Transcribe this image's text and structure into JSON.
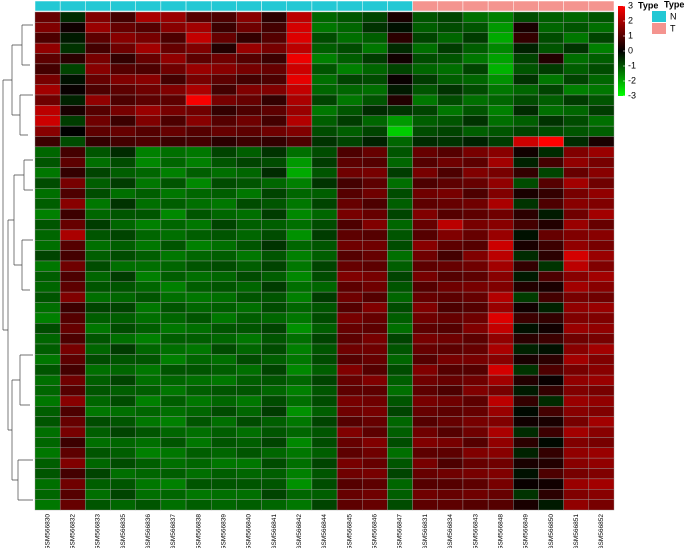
{
  "chart_data": {
    "type": "heatmap",
    "columns": [
      "GSM566830",
      "GSM566832",
      "GSM566833",
      "GSM566835",
      "GSM566836",
      "GSM566837",
      "GSM566838",
      "GSM566839",
      "GSM566840",
      "GSM566841",
      "GSM566842",
      "GSM566844",
      "GSM566845",
      "GSM566846",
      "GSM566847",
      "GSM566831",
      "GSM566834",
      "GSM566843",
      "GSM566848",
      "GSM566849",
      "GSM566850",
      "GSM566851",
      "GSM566852"
    ],
    "annotation": {
      "title": "Type",
      "levels": [
        {
          "name": "N",
          "color": "#23c8d4"
        },
        {
          "name": "T",
          "color": "#f4948f"
        }
      ],
      "values": [
        "N",
        "N",
        "N",
        "N",
        "N",
        "N",
        "N",
        "N",
        "N",
        "N",
        "N",
        "N",
        "N",
        "N",
        "N",
        "T",
        "T",
        "T",
        "T",
        "T",
        "T",
        "T",
        "T"
      ]
    },
    "colorbar": {
      "title": "Type",
      "lim": [
        -3,
        3
      ],
      "ticks": [
        3,
        2,
        1,
        0,
        -1,
        -2,
        -3
      ],
      "colors": [
        "#00ff00",
        "#000000",
        "#ff0000"
      ]
    },
    "values": [
      [
        1.2,
        -0.5,
        1.5,
        0.8,
        2.0,
        1.8,
        1.0,
        0.9,
        1.6,
        0.5,
        2.2,
        -1.2,
        -1.0,
        -0.8,
        0.3,
        -1.0,
        -0.8,
        -1.3,
        -1.5,
        -0.9,
        -1.1,
        -1.2,
        -1.0
      ],
      [
        1.5,
        0.2,
        1.8,
        1.2,
        1.0,
        1.6,
        1.9,
        0.7,
        1.3,
        0.8,
        2.5,
        -1.4,
        -1.2,
        -0.6,
        -0.2,
        -1.1,
        -0.9,
        -1.0,
        -1.8,
        0.3,
        -1.2,
        -1.0,
        -1.3
      ],
      [
        0.9,
        -0.3,
        1.1,
        1.6,
        1.4,
        0.9,
        2.3,
        1.2,
        0.6,
        1.0,
        2.6,
        -0.9,
        -1.3,
        -1.1,
        0.5,
        -0.8,
        -1.2,
        -0.7,
        -2.0,
        0.6,
        -0.9,
        -1.4,
        -0.8
      ],
      [
        1.7,
        -0.6,
        0.8,
        1.3,
        1.9,
        1.2,
        1.5,
        0.4,
        1.8,
        1.4,
        2.2,
        -1.1,
        -0.9,
        -1.4,
        -0.5,
        -1.3,
        -0.7,
        -1.1,
        -1.6,
        -0.4,
        -1.0,
        -0.6,
        -1.5
      ],
      [
        1.1,
        0.5,
        1.4,
        0.6,
        1.2,
        1.7,
        1.1,
        1.3,
        1.0,
        0.7,
        2.8,
        -1.5,
        -1.1,
        -0.7,
        0.2,
        -0.9,
        -1.0,
        -1.4,
        -1.9,
        -0.8,
        0.4,
        -1.3,
        -1.1
      ],
      [
        0.8,
        -0.8,
        1.6,
        1.0,
        0.9,
        1.3,
        1.8,
        1.6,
        1.4,
        1.2,
        2.4,
        -1.0,
        -1.5,
        -1.2,
        -0.8,
        -1.2,
        -1.3,
        -0.8,
        -2.1,
        -1.0,
        -0.7,
        -1.1,
        -0.9
      ],
      [
        1.4,
        -0.2,
        1.2,
        1.5,
        1.6,
        0.8,
        1.4,
        1.1,
        0.8,
        0.9,
        2.7,
        -1.3,
        -0.8,
        -0.9,
        0.1,
        -0.7,
        -1.1,
        -1.2,
        -1.7,
        -0.6,
        -1.4,
        -0.8,
        -1.2
      ],
      [
        1.9,
        0.1,
        0.9,
        1.1,
        1.3,
        1.5,
        2.0,
        0.8,
        1.5,
        1.5,
        2.3,
        -1.2,
        -1.2,
        -1.3,
        -0.3,
        -1.0,
        -0.6,
        -0.9,
        -1.4,
        -1.2,
        -0.8,
        -1.5,
        -1.4
      ],
      [
        1.3,
        -0.4,
        1.7,
        0.9,
        1.1,
        1.1,
        2.9,
        1.4,
        1.2,
        0.6,
        2.0,
        -0.8,
        -1.4,
        -1.0,
        0.4,
        -1.4,
        -0.9,
        -1.3,
        -1.2,
        -0.9,
        -1.1,
        -0.7,
        -1.0
      ],
      [
        2.2,
        0.3,
        1.0,
        1.4,
        1.8,
        1.4,
        1.3,
        0.6,
        0.9,
        1.1,
        1.8,
        -1.4,
        -1.0,
        -0.5,
        -0.6,
        -0.8,
        -1.4,
        -1.0,
        -1.5,
        -0.5,
        -1.3,
        -1.2,
        -0.7
      ],
      [
        2.4,
        -0.7,
        1.3,
        0.7,
        1.5,
        0.9,
        1.6,
        1.0,
        1.3,
        0.8,
        2.1,
        -1.1,
        -0.7,
        -1.2,
        -1.8,
        -1.1,
        -1.0,
        -0.6,
        -1.3,
        -1.1,
        -0.6,
        -0.9,
        -1.3
      ],
      [
        1.6,
        0.0,
        1.1,
        1.2,
        1.0,
        1.2,
        1.0,
        1.2,
        1.1,
        1.3,
        1.5,
        -0.9,
        -1.1,
        -0.8,
        -2.4,
        -0.9,
        -0.8,
        -1.1,
        -1.0,
        -0.8,
        -0.9,
        -1.0,
        -1.1
      ],
      [
        0.7,
        -0.9,
        0.6,
        0.8,
        0.9,
        0.7,
        0.8,
        0.5,
        0.7,
        0.6,
        0.9,
        -0.6,
        -0.8,
        -0.4,
        -1.2,
        -0.5,
        -0.6,
        -0.4,
        -0.7,
        2.4,
        3.0,
        -0.5,
        0.3
      ],
      [
        -1.2,
        0.8,
        -1.0,
        -0.5,
        -1.5,
        -1.3,
        -1.4,
        -0.8,
        -1.1,
        -0.6,
        -1.3,
        -0.9,
        0.9,
        1.2,
        -1.0,
        1.2,
        1.0,
        1.4,
        1.6,
        0.2,
        -0.5,
        1.5,
        1.8
      ],
      [
        -1.0,
        1.1,
        -1.3,
        -0.9,
        -1.6,
        -1.2,
        -1.5,
        -1.0,
        -0.8,
        -0.9,
        -1.8,
        -0.7,
        1.1,
        1.0,
        -1.2,
        1.0,
        1.3,
        1.1,
        1.9,
        -0.4,
        0.8,
        1.7,
        1.4
      ],
      [
        -1.4,
        0.6,
        -0.8,
        -1.1,
        -1.2,
        -1.5,
        -1.1,
        -1.3,
        -1.2,
        -0.5,
        -2.0,
        -1.0,
        1.3,
        1.4,
        -0.7,
        1.4,
        0.9,
        1.5,
        1.4,
        0.6,
        -0.8,
        1.2,
        1.6
      ],
      [
        -0.9,
        1.4,
        -1.1,
        -0.7,
        -1.4,
        -1.0,
        -1.6,
        -0.9,
        -1.0,
        -1.2,
        -1.5,
        -0.6,
        0.8,
        1.1,
        -1.3,
        0.9,
        1.1,
        1.2,
        1.7,
        -0.9,
        1.0,
        1.9,
        1.3
      ],
      [
        -1.3,
        0.9,
        -0.9,
        -1.3,
        -1.1,
        -1.4,
        -1.2,
        -1.1,
        -1.4,
        -0.8,
        -1.2,
        -1.1,
        1.0,
        1.3,
        -0.9,
        1.3,
        1.4,
        0.9,
        1.5,
        0.3,
        0.6,
        1.4,
        1.7
      ],
      [
        -1.1,
        1.6,
        -1.4,
        -0.6,
        -1.3,
        -1.1,
        -1.3,
        -1.4,
        -0.9,
        -1.0,
        -1.4,
        -0.8,
        1.2,
        0.9,
        -1.1,
        1.1,
        1.2,
        1.3,
        2.0,
        -0.6,
        0.9,
        1.6,
        1.5
      ],
      [
        -1.5,
        0.7,
        -1.2,
        -1.0,
        -1.0,
        -1.6,
        -1.0,
        -1.2,
        -1.3,
        -0.7,
        -1.6,
        -1.2,
        1.4,
        1.2,
        -0.8,
        1.5,
        1.0,
        1.1,
        1.3,
        0.5,
        -0.3,
        1.3,
        1.9
      ],
      [
        -1.0,
        1.2,
        -0.7,
        -1.2,
        -1.5,
        -1.2,
        -1.4,
        -0.8,
        -1.1,
        -1.1,
        -1.3,
        -0.9,
        0.9,
        1.5,
        -1.2,
        1.2,
        2.2,
        1.4,
        1.6,
        0.8,
        0.4,
        1.8,
        1.2
      ],
      [
        -1.2,
        2.0,
        -1.0,
        -0.8,
        -1.2,
        -1.3,
        -1.1,
        -1.0,
        -1.2,
        -0.9,
        -1.7,
        -0.7,
        1.1,
        1.0,
        -1.0,
        1.0,
        1.5,
        1.2,
        1.8,
        -0.2,
        1.2,
        1.5,
        1.6
      ],
      [
        -1.3,
        1.0,
        -1.3,
        -1.1,
        -1.4,
        -1.0,
        -1.5,
        -1.3,
        -1.0,
        -0.6,
        -1.2,
        -1.0,
        1.3,
        1.3,
        -0.9,
        1.6,
        1.1,
        1.0,
        2.4,
        0.3,
        0.7,
        1.7,
        1.4
      ],
      [
        -0.8,
        0.8,
        -1.1,
        -0.9,
        -1.1,
        -1.4,
        -1.2,
        -1.1,
        -1.4,
        -1.0,
        -1.5,
        -1.1,
        1.0,
        1.2,
        -1.3,
        1.3,
        0.8,
        1.5,
        2.2,
        -0.5,
        0.5,
        2.5,
        1.8
      ],
      [
        -1.4,
        1.3,
        -0.9,
        -1.3,
        -1.3,
        -1.2,
        -1.0,
        -0.9,
        -1.1,
        -0.8,
        -1.4,
        -0.8,
        1.2,
        1.1,
        -1.1,
        1.1,
        1.2,
        1.3,
        1.9,
        0.6,
        -0.6,
        2.2,
        1.5
      ],
      [
        -1.1,
        0.9,
        -1.2,
        -0.7,
        -1.5,
        -1.1,
        -1.3,
        -1.2,
        -0.9,
        -1.1,
        -1.6,
        -0.9,
        1.5,
        1.4,
        -0.8,
        1.4,
        1.0,
        1.1,
        1.6,
        -0.3,
        0.9,
        1.6,
        1.9
      ],
      [
        -1.2,
        1.1,
        -1.0,
        -1.0,
        -1.2,
        -1.5,
        -1.1,
        -1.0,
        -1.2,
        -0.7,
        -1.3,
        -1.2,
        1.1,
        1.3,
        -1.0,
        1.0,
        1.3,
        1.4,
        1.5,
        0.4,
        0.3,
        1.9,
        1.6
      ],
      [
        -1.0,
        1.5,
        -1.3,
        -1.2,
        -1.0,
        -1.3,
        -1.4,
        -1.3,
        -1.0,
        -1.0,
        -1.5,
        -0.7,
        1.3,
        1.0,
        -1.2,
        1.2,
        1.1,
        1.2,
        2.1,
        -0.7,
        0.8,
        1.4,
        1.3
      ],
      [
        -1.3,
        0.7,
        -0.8,
        -0.8,
        -1.4,
        -1.0,
        -1.2,
        -1.1,
        -1.3,
        -0.9,
        -1.2,
        -1.0,
        1.0,
        1.5,
        -0.9,
        1.5,
        0.9,
        1.0,
        1.8,
        0.2,
        -0.4,
        1.7,
        1.8
      ],
      [
        -1.5,
        1.0,
        -1.1,
        -1.1,
        -1.3,
        -1.2,
        -1.0,
        -1.4,
        -1.1,
        -1.2,
        -1.4,
        -0.9,
        1.4,
        1.2,
        -1.1,
        1.3,
        1.2,
        1.3,
        2.6,
        0.7,
        0.6,
        1.5,
        1.5
      ],
      [
        -0.9,
        1.2,
        -1.4,
        -0.9,
        -1.1,
        -1.4,
        -1.3,
        -1.0,
        -1.0,
        -0.8,
        -1.7,
        -1.1,
        1.2,
        1.1,
        -1.3,
        1.1,
        1.0,
        1.5,
        2.3,
        -0.2,
        0.2,
        1.8,
        1.7
      ],
      [
        -1.2,
        0.9,
        -1.0,
        -1.3,
        -1.5,
        -1.1,
        -1.1,
        -1.2,
        -1.4,
        -1.0,
        -1.3,
        -0.8,
        1.1,
        1.4,
        -0.8,
        1.4,
        1.3,
        1.1,
        1.7,
        0.5,
        0.7,
        1.3,
        1.4
      ],
      [
        -1.1,
        1.4,
        -1.2,
        -0.7,
        -1.2,
        -1.3,
        -1.4,
        -0.9,
        -1.2,
        -0.9,
        -1.5,
        -1.0,
        1.3,
        1.3,
        -1.0,
        1.2,
        1.1,
        1.2,
        2.0,
        -0.4,
        -0.2,
        1.6,
        1.9
      ],
      [
        -1.4,
        1.1,
        -0.9,
        -1.0,
        -1.0,
        -1.5,
        -1.2,
        -1.3,
        -0.9,
        -1.1,
        -1.4,
        -0.9,
        1.0,
        1.2,
        -1.2,
        1.0,
        1.4,
        1.4,
        1.6,
        0.3,
        0.5,
        1.9,
        1.5
      ],
      [
        -1.0,
        0.8,
        -1.3,
        -1.2,
        -1.4,
        -1.0,
        -1.0,
        -1.1,
        -1.3,
        -0.8,
        -1.6,
        -1.1,
        1.5,
        1.0,
        -0.9,
        1.5,
        1.0,
        1.0,
        2.5,
        -0.6,
        0.9,
        1.4,
        1.6
      ],
      [
        -1.3,
        1.3,
        -1.1,
        -0.8,
        -1.3,
        -1.2,
        -1.3,
        -1.4,
        -1.1,
        -1.0,
        -1.2,
        -0.8,
        1.2,
        1.5,
        -1.1,
        1.3,
        1.2,
        1.3,
        1.9,
        0.4,
        0.1,
        1.7,
        1.8
      ],
      [
        -1.2,
        1.0,
        -1.0,
        -1.1,
        -1.1,
        -1.4,
        -1.1,
        -1.0,
        -1.0,
        -1.2,
        -1.5,
        -1.0,
        1.1,
        1.1,
        -1.3,
        1.1,
        0.9,
        1.5,
        1.4,
        -0.3,
        0.6,
        1.5,
        1.4
      ],
      [
        -1.4,
        1.6,
        -1.2,
        -0.9,
        -1.5,
        -1.1,
        -1.4,
        -1.2,
        -1.4,
        -0.9,
        -1.3,
        -0.9,
        1.4,
        1.3,
        -1.0,
        1.4,
        1.3,
        1.1,
        2.2,
        0.6,
        -0.5,
        1.8,
        1.7
      ],
      [
        -1.1,
        0.9,
        -1.4,
        -1.3,
        -1.2,
        -1.3,
        -1.2,
        -0.9,
        -1.2,
        -0.7,
        -1.7,
        -1.1,
        1.3,
        1.4,
        -0.8,
        1.2,
        1.1,
        1.2,
        1.8,
        -0.1,
        0.8,
        1.6,
        1.5
      ],
      [
        -1.0,
        1.2,
        -0.9,
        -1.0,
        -1.4,
        -1.5,
        -1.0,
        -1.3,
        -0.9,
        -1.1,
        -1.4,
        -0.8,
        1.0,
        1.2,
        -1.2,
        1.0,
        1.2,
        1.4,
        1.5,
        0.2,
        0.3,
        1.4,
        1.9
      ],
      [
        -1.3,
        1.4,
        -1.1,
        -0.8,
        -1.0,
        -1.2,
        -1.3,
        -1.1,
        -1.3,
        -1.0,
        -1.2,
        -1.0,
        1.5,
        1.1,
        -1.1,
        1.3,
        1.0,
        1.3,
        2.0,
        -0.5,
        0.7,
        1.9,
        1.6
      ],
      [
        -1.2,
        0.7,
        -1.3,
        -1.2,
        -1.3,
        -1.0,
        -1.4,
        -1.0,
        -1.1,
        -0.8,
        -1.6,
        -0.9,
        1.2,
        1.5,
        -0.9,
        1.5,
        1.4,
        1.0,
        1.7,
        0.5,
        -0.1,
        1.5,
        1.4
      ],
      [
        -1.4,
        1.1,
        -1.0,
        -1.1,
        -1.5,
        -1.4,
        -1.1,
        -1.2,
        -1.0,
        -1.2,
        -1.4,
        -1.1,
        1.1,
        1.3,
        -1.3,
        1.1,
        1.1,
        1.5,
        1.6,
        -0.4,
        0.6,
        1.7,
        1.8
      ],
      [
        -1.1,
        1.5,
        -1.2,
        -0.9,
        -1.1,
        -1.3,
        -1.2,
        -1.4,
        -1.4,
        -0.9,
        -1.3,
        -0.8,
        1.4,
        1.2,
        -1.0,
        1.4,
        0.9,
        1.2,
        1.3,
        0.3,
        0.4,
        1.6,
        1.7
      ],
      [
        -1.0,
        0.8,
        -0.8,
        -1.3,
        -1.2,
        -1.1,
        -1.3,
        -1.1,
        -1.2,
        -1.1,
        -1.5,
        -1.0,
        1.3,
        1.4,
        -0.8,
        1.2,
        1.3,
        1.4,
        1.5,
        -0.2,
        0.9,
        1.4,
        1.5
      ],
      [
        -1.3,
        1.3,
        -1.1,
        -1.0,
        -1.4,
        -1.5,
        -1.0,
        -1.0,
        -1.0,
        -1.0,
        -1.7,
        -0.9,
        1.0,
        1.1,
        -1.2,
        1.0,
        1.0,
        1.1,
        1.4,
        0.1,
        0.2,
        1.8,
        1.9
      ],
      [
        -1.2,
        1.0,
        -1.3,
        -0.8,
        -1.3,
        -1.2,
        -1.4,
        -1.3,
        -1.3,
        -0.8,
        -1.2,
        -1.1,
        1.2,
        1.3,
        -1.1,
        1.3,
        1.2,
        1.3,
        1.2,
        -0.6,
        0.5,
        1.5,
        1.6
      ],
      [
        -1.4,
        1.2,
        -1.0,
        -1.2,
        -1.0,
        -1.3,
        -1.1,
        -1.2,
        -1.1,
        -1.2,
        -1.4,
        -0.8,
        1.1,
        1.2,
        -0.9,
        1.1,
        1.1,
        1.0,
        1.0,
        0.3,
        -0.3,
        1.7,
        1.4
      ]
    ]
  }
}
